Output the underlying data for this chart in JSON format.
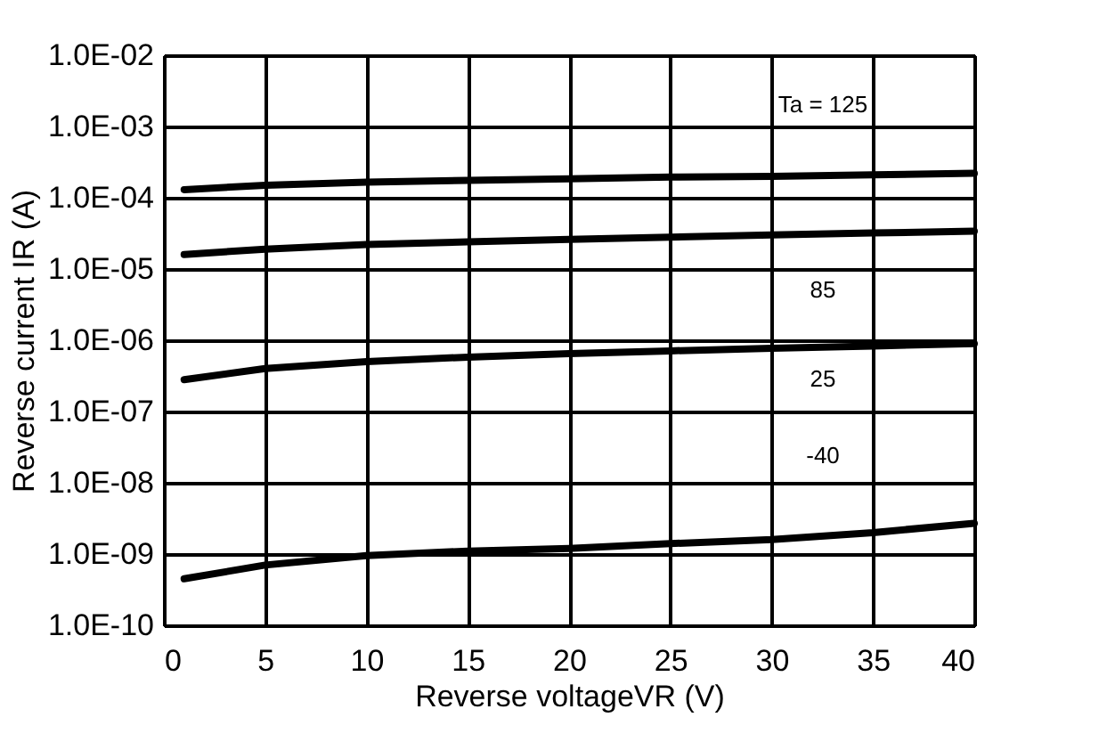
{
  "chart_data": {
    "type": "line",
    "xlabel": "Reverse voltageVR (V)",
    "ylabel": "Reverse current IR (A)",
    "x": [
      1,
      5,
      10,
      15,
      20,
      25,
      30,
      35,
      40
    ],
    "series": [
      {
        "color": "#000000",
        "values": [
          0.00013,
          0.00015,
          0.000165,
          0.000175,
          0.000185,
          0.000195,
          0.0002,
          0.00021,
          0.00022
        ]
      },
      {
        "color": "#000000",
        "values": [
          1.6e-05,
          1.9e-05,
          2.2e-05,
          2.4e-05,
          2.6e-05,
          2.8e-05,
          3e-05,
          3.2e-05,
          3.4e-05
        ]
      },
      {
        "color": "#000000",
        "values": [
          2.8e-07,
          4e-07,
          5e-07,
          5.8e-07,
          6.5e-07,
          7.1e-07,
          7.7e-07,
          8.3e-07,
          9e-07
        ]
      },
      {
        "color": "#000000",
        "values": [
          4.5e-10,
          7e-10,
          9.5e-10,
          1.1e-09,
          1.2e-09,
          1.4e-09,
          1.6e-09,
          2e-09,
          2.7e-09
        ]
      }
    ],
    "annotations": [
      "Ta = 125",
      "85",
      "25",
      "-40"
    ],
    "log": "y",
    "grid": true,
    "marker": "none",
    "line_style": "solid",
    "legend": false,
    "xlim": [
      0,
      40
    ],
    "xticks": [
      0,
      5,
      10,
      15,
      20,
      25,
      30,
      35,
      40
    ],
    "ylim": [
      1e-10,
      0.01
    ],
    "yticks": [
      {
        "value": 1e-10,
        "label": "1.0E-10"
      },
      {
        "value": 1e-09,
        "label": "1.0E-09"
      },
      {
        "value": 1e-08,
        "label": "1.0E-08"
      },
      {
        "value": 1e-07,
        "label": "1.0E-07"
      },
      {
        "value": 1e-06,
        "label": "1.0E-06"
      },
      {
        "value": 1e-05,
        "label": "1.0E-05"
      },
      {
        "value": 0.0001,
        "label": "1.0E-04"
      },
      {
        "value": 0.001,
        "label": "1.0E-03"
      },
      {
        "value": 0.01,
        "label": "1.0E-02"
      }
    ]
  }
}
